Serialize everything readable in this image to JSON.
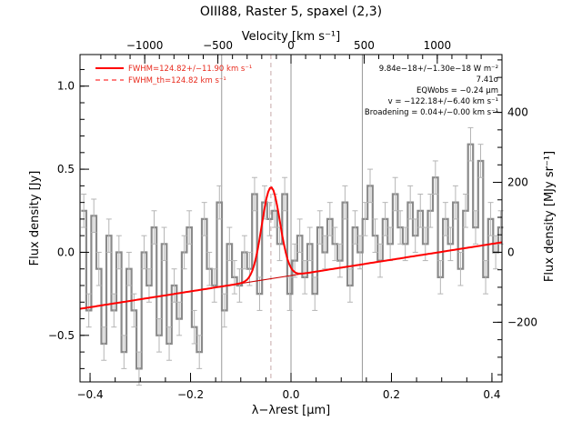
{
  "chart_data": {
    "type": "line",
    "title": "OIII88, Raster 5, spaxel (2,3)",
    "xlabel": "λ−λrest [μm]",
    "ylabel": "Flux density [Jy]",
    "top_axis_label": "Velocity [km s⁻¹]",
    "right_axis_label": "Flux density [MJy sr⁻¹]",
    "xlim": [
      -0.42,
      0.42
    ],
    "ylim": [
      -0.78,
      1.19
    ],
    "x_ticks": [
      -0.4,
      -0.2,
      0.0,
      0.2,
      0.4
    ],
    "x_tick_labels": [
      "−0.4",
      "−0.2",
      "0.0",
      "0.2",
      "0.4"
    ],
    "y_ticks": [
      -0.5,
      0.0,
      0.5,
      1.0
    ],
    "y_tick_labels": [
      "−0.5",
      "0.0",
      "0.5",
      "1.0"
    ],
    "top_ticks": [
      {
        "x": -0.2912,
        "label": "−1000"
      },
      {
        "x": -0.1456,
        "label": "−500"
      },
      {
        "x": 0.0,
        "label": "0"
      },
      {
        "x": 0.1456,
        "label": "500"
      },
      {
        "x": 0.2912,
        "label": "1000"
      }
    ],
    "right_ticks": [
      {
        "y": -0.421,
        "label": "−200"
      },
      {
        "y": 0.0,
        "label": "0"
      },
      {
        "y": 0.421,
        "label": "200"
      },
      {
        "y": 0.842,
        "label": "400"
      }
    ],
    "vertical_lines": [
      -0.138,
      0.0,
      0.142
    ],
    "line_center_x": -0.04,
    "spectrum": {
      "name": "Spectrum",
      "color": "#8a8a8a",
      "x": [
        -0.4125,
        -0.4025,
        -0.3925,
        -0.3825,
        -0.3725,
        -0.3625,
        -0.3525,
        -0.3425,
        -0.3325,
        -0.3225,
        -0.3125,
        -0.3025,
        -0.2925,
        -0.2825,
        -0.2725,
        -0.2625,
        -0.2525,
        -0.2425,
        -0.2325,
        -0.2225,
        -0.2125,
        -0.2025,
        -0.1925,
        -0.1825,
        -0.1725,
        -0.1625,
        -0.1525,
        -0.1425,
        -0.1325,
        -0.1225,
        -0.1125,
        -0.1025,
        -0.0925,
        -0.0825,
        -0.0725,
        -0.0625,
        -0.0525,
        -0.0425,
        -0.0325,
        -0.0225,
        -0.0125,
        -0.0025,
        0.0075,
        0.0175,
        0.0275,
        0.0375,
        0.0475,
        0.0575,
        0.0675,
        0.0775,
        0.0875,
        0.0975,
        0.1075,
        0.1175,
        0.1275,
        0.1375,
        0.1475,
        0.1575,
        0.1675,
        0.1775,
        0.1875,
        0.1975,
        0.2075,
        0.2175,
        0.2275,
        0.2375,
        0.2475,
        0.2575,
        0.2675,
        0.2775,
        0.2875,
        0.2975,
        0.3075,
        0.3175,
        0.3275,
        0.3375,
        0.3475,
        0.3575,
        0.3675,
        0.3775,
        0.3875,
        0.3975,
        0.4075,
        0.4175
      ],
      "y": [
        0.25,
        -0.35,
        0.22,
        -0.1,
        -0.55,
        0.1,
        -0.35,
        0.0,
        -0.6,
        -0.1,
        -0.35,
        -0.7,
        0.0,
        -0.2,
        0.15,
        -0.5,
        0.05,
        -0.55,
        -0.2,
        -0.4,
        0.0,
        0.15,
        -0.45,
        -0.6,
        0.2,
        -0.1,
        -0.2,
        0.3,
        -0.35,
        0.05,
        -0.15,
        -0.2,
        0.0,
        -0.1,
        0.35,
        -0.25,
        0.3,
        0.2,
        0.25,
        0.05,
        0.35,
        -0.25,
        -0.05,
        0.1,
        -0.15,
        0.05,
        -0.25,
        0.15,
        0.0,
        0.2,
        0.05,
        -0.05,
        0.3,
        -0.2,
        0.15,
        0.0,
        0.2,
        0.4,
        0.1,
        -0.05,
        0.2,
        0.05,
        0.35,
        0.15,
        0.05,
        0.3,
        0.1,
        0.25,
        0.05,
        0.25,
        0.45,
        -0.15,
        0.2,
        0.05,
        0.3,
        -0.1,
        0.25,
        0.65,
        0.15,
        0.55,
        -0.15,
        0.2,
        0.0,
        0.15
      ],
      "err": [
        0.1,
        0.1,
        0.1,
        0.1,
        0.1,
        0.1,
        0.1,
        0.1,
        0.1,
        0.1,
        0.1,
        0.1,
        0.1,
        0.1,
        0.1,
        0.1,
        0.1,
        0.1,
        0.1,
        0.1,
        0.1,
        0.1,
        0.1,
        0.1,
        0.1,
        0.1,
        0.1,
        0.1,
        0.1,
        0.1,
        0.1,
        0.1,
        0.1,
        0.1,
        0.1,
        0.1,
        0.1,
        0.1,
        0.1,
        0.1,
        0.1,
        0.1,
        0.1,
        0.1,
        0.1,
        0.1,
        0.1,
        0.1,
        0.1,
        0.1,
        0.1,
        0.1,
        0.1,
        0.1,
        0.1,
        0.1,
        0.1,
        0.1,
        0.1,
        0.1,
        0.1,
        0.1,
        0.1,
        0.1,
        0.1,
        0.1,
        0.1,
        0.1,
        0.1,
        0.1,
        0.1,
        0.1,
        0.1,
        0.1,
        0.1,
        0.1,
        0.1,
        0.1,
        0.1,
        0.1,
        0.1,
        0.1,
        0.1,
        0.1
      ]
    },
    "continuum": {
      "name": "Continuum",
      "color": "#cc0000",
      "x": [
        -0.42,
        0.42
      ],
      "y": [
        -0.34,
        0.06
      ]
    },
    "gaussian_fit": {
      "name": "FWHM=124.82+/−11.90 km s⁻¹",
      "color": "#ff0000",
      "center": -0.04,
      "amplitude": 0.55,
      "sigma": 0.018
    },
    "legend": {
      "position": "top-left",
      "entries": [
        {
          "label": "FWHM=124.82+/−11.90 km s⁻¹",
          "style": "solid",
          "color": "#ff0000"
        },
        {
          "label": "FWHM_th=124.82 km s⁻¹",
          "style": "dashed",
          "color": "#ff0000"
        }
      ]
    },
    "annotations": [
      "9.84e−18+/−1.30e−18 W m⁻²",
      "7.41σ",
      "EQWobs = −0.24 μm",
      "v = −122.18+/−6.40 km s⁻¹",
      "Broadening = 0.04+/−0.00 km s⁻¹"
    ]
  }
}
